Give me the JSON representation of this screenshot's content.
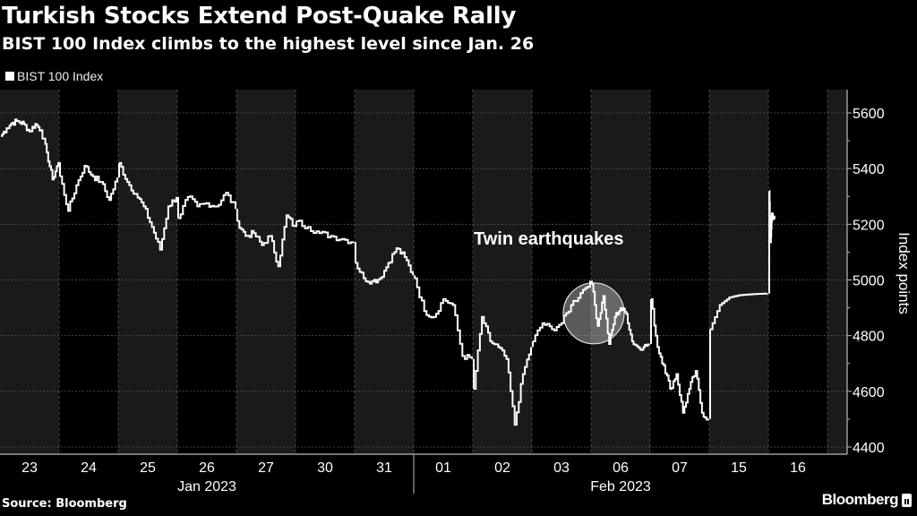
{
  "header": {
    "title": "Turkish Stocks Extend Post-Quake Rally",
    "subtitle": "BIST 100 Index climbs to the highest level since Jan. 26"
  },
  "footer": {
    "source": "Source: Bloomberg",
    "brand": "Bloomberg"
  },
  "colors": {
    "background": "#000000",
    "band": "#1a1a1a",
    "line": "#ffffff",
    "grid": "#555555"
  },
  "chart_data": {
    "type": "line",
    "title": "Turkish Stocks Extend Post-Quake Rally",
    "subtitle": "BIST 100 Index climbs to the highest level since Jan. 26",
    "ylabel": "Index points",
    "xlabel": "",
    "ylim": [
      4400,
      5600
    ],
    "yticks": [
      4400,
      4600,
      4800,
      5000,
      5200,
      5400,
      5600
    ],
    "grid": true,
    "legend": {
      "position": "top-left",
      "entries": [
        "BIST 100 Index"
      ]
    },
    "months": [
      {
        "label": "Jan 2023",
        "days": 7
      },
      {
        "label": "Feb 2023",
        "days": 7
      }
    ],
    "annotation": {
      "text": "Twin earthquakes",
      "day": "06",
      "value": 4880
    },
    "series": [
      {
        "name": "BIST 100 Index",
        "days": [
          {
            "label": "23",
            "values": [
              5517,
              5545,
              5565,
              5570,
              5560,
              5533,
              5560,
              5538,
              5458,
              5361,
              5423
            ]
          },
          {
            "label": "24",
            "values": [
              5372,
              5248,
              5340,
              5410,
              5372,
              5352,
              5287,
              5368
            ]
          },
          {
            "label": "25",
            "values": [
              5420,
              5352,
              5309,
              5264,
              5190,
              5109,
              5264,
              5298
            ]
          },
          {
            "label": "26",
            "values": [
              5222,
              5298,
              5264,
              5276,
              5264,
              5313,
              5255
            ]
          },
          {
            "label": "27",
            "values": [
              5211,
              5158,
              5168,
              5125,
              5158,
              5049,
              5232,
              5190
            ]
          },
          {
            "label": "30",
            "values": [
              5211,
              5190,
              5168,
              5158,
              5147,
              5136
            ]
          },
          {
            "label": "31",
            "values": [
              5061,
              5006,
              4995,
              5006,
              5061,
              5114,
              5082,
              5017
            ]
          },
          {
            "label": "01",
            "values": [
              5006,
              4888,
              4867,
              4931,
              4910,
              4727,
              4716
            ]
          },
          {
            "label": "02",
            "values": [
              4609,
              4867,
              4780,
              4759,
              4716,
              4480,
              4662,
              4759
            ]
          },
          {
            "label": "03",
            "values": [
              4780,
              4845,
              4823,
              4845,
              4910,
              4953,
              4997
            ]
          },
          {
            "label": "06",
            "values": [
              4985,
              4835,
              4942,
              4770,
              4867,
              4899,
              4878,
              4780,
              4759,
              4759,
              4770
            ]
          },
          {
            "label": "07",
            "values": [
              4931,
              4759,
              4694,
              4609,
              4662,
              4523,
              4609,
              4673,
              4523,
              4501
            ]
          },
          {
            "label": "15",
            "values": [
              4823,
              4910,
              4937,
              4945,
              4948,
              4950,
              4951
            ]
          },
          {
            "label": "16",
            "values": [
              5319,
              5135,
              5239,
              5218,
              5229
            ],
            "session_elapsed": 0.12
          }
        ]
      }
    ]
  }
}
